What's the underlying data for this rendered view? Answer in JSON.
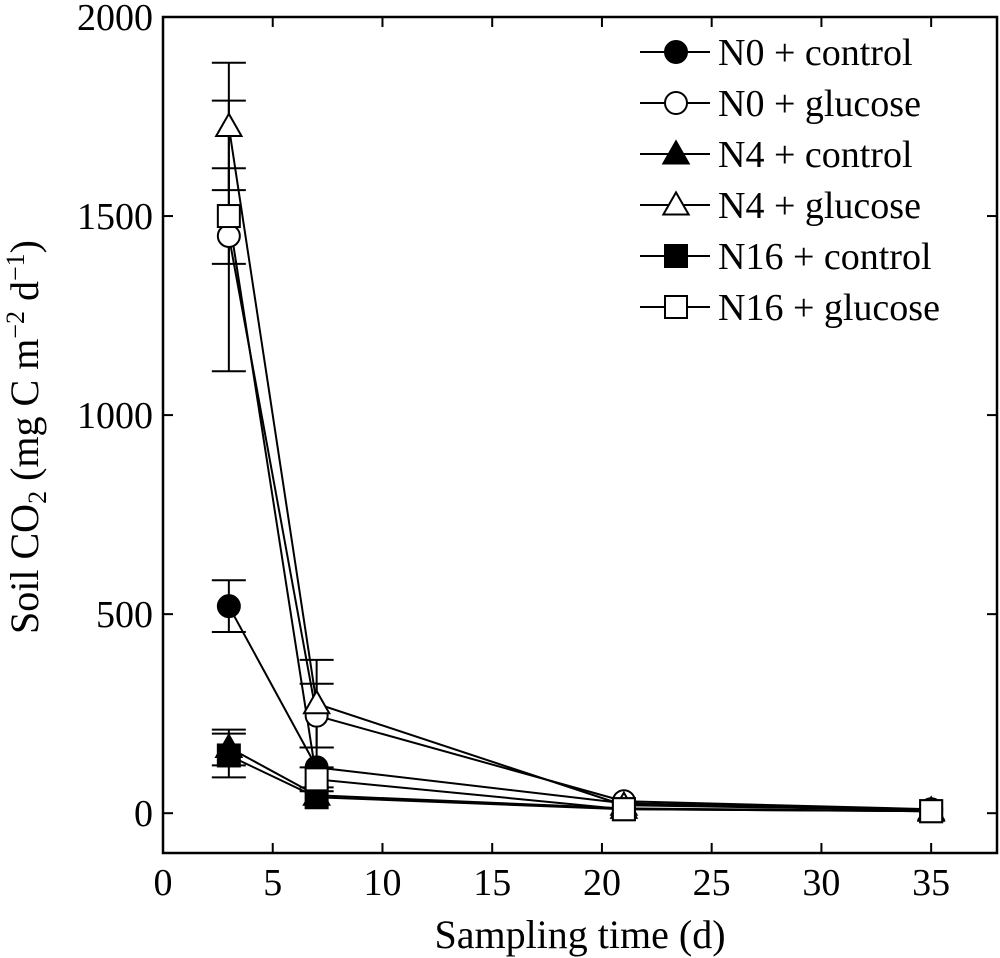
{
  "chart_data": {
    "type": "line",
    "title": "",
    "xlabel": "Sampling time (d)",
    "ylabel_main": "Soil CO",
    "ylabel_sub": "2",
    "ylabel_unit_a": "(mg C m",
    "ylabel_unit_sup1": "−2",
    "ylabel_unit_b": "d",
    "ylabel_unit_sup2": "−1",
    "ylabel_unit_c": ")",
    "xlim": [
      0,
      38
    ],
    "ylim": [
      -100,
      2000
    ],
    "xticks": [
      0,
      5,
      10,
      15,
      20,
      25,
      30,
      35
    ],
    "yticks": [
      0,
      500,
      1000,
      1500,
      2000
    ],
    "legend_position": "top-right",
    "grid": false,
    "x": [
      3,
      7,
      21,
      35
    ],
    "series": [
      {
        "name": "N0 + control",
        "marker": "circle",
        "filled": true,
        "values": [
          520,
          115,
          25,
          8
        ],
        "errors": [
          65,
          50,
          8,
          4
        ]
      },
      {
        "name": "N0 + glucose",
        "marker": "circle",
        "filled": false,
        "values": [
          1450,
          245,
          30,
          10
        ],
        "errors": [
          340,
          80,
          10,
          5
        ]
      },
      {
        "name": "N4 + control",
        "marker": "triangle",
        "filled": true,
        "values": [
          165,
          45,
          12,
          5
        ],
        "errors": [
          45,
          15,
          5,
          3
        ]
      },
      {
        "name": "N4 + glucose",
        "marker": "triangle",
        "filled": false,
        "values": [
          1725,
          275,
          20,
          8
        ],
        "errors": [
          160,
          110,
          8,
          4
        ]
      },
      {
        "name": "N16 + control",
        "marker": "square",
        "filled": true,
        "values": [
          145,
          40,
          10,
          5
        ],
        "errors": [
          55,
          12,
          5,
          3
        ]
      },
      {
        "name": "N16 + glucose",
        "marker": "square",
        "filled": false,
        "values": [
          1500,
          85,
          10,
          5
        ],
        "errors": [
          120,
          30,
          5,
          3
        ]
      }
    ]
  }
}
